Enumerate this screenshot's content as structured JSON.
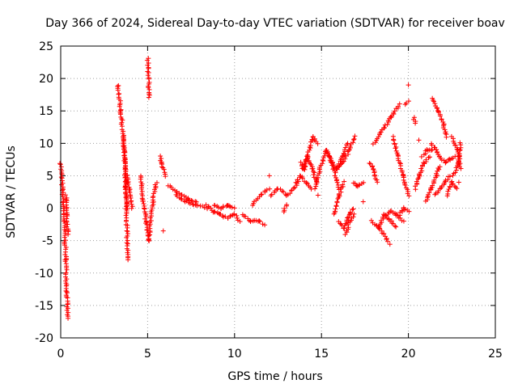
{
  "chart_data": {
    "type": "scatter",
    "title": "Day 366 of 2024, Sidereal Day-to-day VTEC variation (SDTVAR) for receiver boav",
    "xlabel": "GPS time / hours",
    "ylabel": "SDTVAR / TECUs",
    "xlim": [
      0,
      25
    ],
    "ylim": [
      -20,
      25
    ],
    "xticks": [
      0,
      5,
      10,
      15,
      20,
      25
    ],
    "yticks": [
      -20,
      -15,
      -10,
      -5,
      0,
      5,
      10,
      15,
      20,
      25
    ],
    "xtick_labels": [
      "0",
      "5",
      "10",
      "15",
      "20",
      "25"
    ],
    "ytick_labels": [
      "-20",
      "-15",
      "-10",
      "-5",
      "0",
      "5",
      "10",
      "15",
      "20",
      "25"
    ],
    "grid": true,
    "marker": "+",
    "color": "#ff0000",
    "segments": [
      {
        "x": [
          0.0,
          0.1,
          0.2,
          0.3,
          0.35,
          0.4
        ],
        "y": [
          7,
          3,
          -2,
          -8,
          -13,
          -17
        ]
      },
      {
        "x": [
          0.3,
          0.35,
          0.4
        ],
        "y": [
          2,
          -1,
          -4
        ]
      },
      {
        "x": [
          3.3,
          3.45,
          3.6,
          3.7,
          3.8
        ],
        "y": [
          19,
          15,
          11,
          6,
          0
        ]
      },
      {
        "x": [
          3.6,
          3.75,
          3.85
        ],
        "y": [
          11,
          4,
          -8
        ]
      },
      {
        "x": [
          3.8,
          3.95,
          4.1
        ],
        "y": [
          5,
          3,
          0
        ]
      },
      {
        "x": [
          4.6,
          4.75,
          4.9,
          5.05,
          5.3,
          5.5
        ],
        "y": [
          5,
          1,
          -2,
          -5,
          1,
          4
        ]
      },
      {
        "x": [
          5.0,
          5.1
        ],
        "y": [
          23,
          17
        ]
      },
      {
        "x": [
          5.7,
          5.8,
          6.0
        ],
        "y": [
          8,
          7,
          5
        ]
      },
      {
        "x": [
          5.9
        ],
        "y": [
          -3.5
        ]
      },
      {
        "x": [
          6.2,
          6.7,
          7.3,
          7.8
        ],
        "y": [
          3.5,
          2.5,
          1.5,
          1.0
        ]
      },
      {
        "x": [
          6.6,
          7.2,
          7.8,
          8.4
        ],
        "y": [
          2.0,
          1.0,
          0.5,
          0.0
        ]
      },
      {
        "x": [
          8.4,
          8.8,
          9.2,
          9.6,
          10.0,
          10.3
        ],
        "y": [
          0.5,
          -0.5,
          -1.0,
          -1.5,
          -1.0,
          -2.0
        ]
      },
      {
        "x": [
          8.8,
          9.2,
          9.6,
          10.0
        ],
        "y": [
          0.5,
          0.0,
          0.5,
          0.0
        ]
      },
      {
        "x": [
          10.5,
          10.9,
          11.4,
          11.7
        ],
        "y": [
          -1.0,
          -2.0,
          -2.0,
          -2.5
        ]
      },
      {
        "x": [
          11.0,
          11.5,
          12.0
        ],
        "y": [
          0.5,
          2.0,
          3.0
        ]
      },
      {
        "x": [
          12.0
        ],
        "y": [
          5.0
        ]
      },
      {
        "x": [
          12.1,
          12.5,
          13.0,
          13.4,
          13.7
        ],
        "y": [
          2.0,
          3.0,
          2.0,
          3.0,
          4.0
        ]
      },
      {
        "x": [
          12.8,
          13.0
        ],
        "y": [
          -0.5,
          0.5
        ]
      },
      {
        "x": [
          13.5,
          13.8,
          14.1,
          14.4
        ],
        "y": [
          4.0,
          5.0,
          4.0,
          3.0
        ]
      },
      {
        "x": [
          13.8,
          14.0,
          14.2,
          14.5,
          14.8
        ],
        "y": [
          7.0,
          6.0,
          8.0,
          11.0,
          10.0
        ]
      },
      {
        "x": [
          13.9,
          14.2,
          14.5,
          14.7
        ],
        "y": [
          6.0,
          8.0,
          6.0,
          4.0
        ]
      },
      {
        "x": [
          14.6,
          14.9,
          15.3,
          15.7,
          16.0
        ],
        "y": [
          3.0,
          6.0,
          9.0,
          6.0,
          3.0
        ]
      },
      {
        "x": [
          14.8
        ],
        "y": [
          2.0
        ]
      },
      {
        "x": [
          15.3,
          15.6,
          15.9,
          16.2,
          16.5
        ],
        "y": [
          9.0,
          7.0,
          6.0,
          8.0,
          10.0
        ]
      },
      {
        "x": [
          15.7,
          16.0,
          16.3
        ],
        "y": [
          -1.0,
          2.0,
          4.0
        ]
      },
      {
        "x": [
          15.9,
          16.2,
          16.6,
          16.9
        ],
        "y": [
          6.0,
          7.0,
          9.0,
          11.0
        ]
      },
      {
        "x": [
          16.0,
          16.3,
          16.6,
          16.8
        ],
        "y": [
          -2.0,
          -3.0,
          -1.0,
          0.0
        ]
      },
      {
        "x": [
          16.4,
          16.6,
          16.9
        ],
        "y": [
          -4.0,
          -2.0,
          -1.0
        ]
      },
      {
        "x": [
          16.8,
          17.0,
          17.2,
          17.4
        ],
        "y": [
          4.0,
          3.5,
          3.5,
          4.0
        ]
      },
      {
        "x": [
          17.4
        ],
        "y": [
          1.0
        ]
      },
      {
        "x": [
          17.8,
          18.0,
          18.2
        ],
        "y": [
          7.0,
          6.0,
          4.0
        ]
      },
      {
        "x": [
          17.9,
          18.3,
          18.6,
          18.9
        ],
        "y": [
          -2.0,
          -3.0,
          -4.0,
          -5.5
        ]
      },
      {
        "x": [
          18.0,
          18.5,
          19.0,
          19.5
        ],
        "y": [
          10.0,
          12.0,
          14.0,
          16.0
        ]
      },
      {
        "x": [
          18.3,
          18.6,
          19.0,
          19.3
        ],
        "y": [
          -3.0,
          -1.0,
          -2.0,
          -3.0
        ]
      },
      {
        "x": [
          18.7,
          19.0,
          19.3,
          19.7
        ],
        "y": [
          -1.0,
          -0.5,
          -1.0,
          -2.0
        ]
      },
      {
        "x": [
          19.1,
          19.4,
          19.7,
          20.0
        ],
        "y": [
          11.0,
          8.0,
          5.0,
          2.0
        ]
      },
      {
        "x": [
          19.5,
          19.7,
          20.0
        ],
        "y": [
          -1.0,
          0.0,
          -0.5
        ]
      },
      {
        "x": [
          19.8,
          20.0
        ],
        "y": [
          16.0,
          16.5
        ]
      },
      {
        "x": [
          20.0
        ],
        "y": [
          19.0
        ]
      },
      {
        "x": [
          20.3,
          20.4
        ],
        "y": [
          14.0,
          13.0
        ]
      },
      {
        "x": [
          20.4,
          20.6,
          20.9,
          21.2
        ],
        "y": [
          3.0,
          5.0,
          7.0,
          8.0
        ]
      },
      {
        "x": [
          20.6
        ],
        "y": [
          10.5
        ]
      },
      {
        "x": [
          20.8,
          21.1,
          21.4
        ],
        "y": [
          8.0,
          9.0,
          9.0
        ]
      },
      {
        "x": [
          21.0,
          21.3,
          21.6,
          21.8
        ],
        "y": [
          1.0,
          3.0,
          5.0,
          6.5
        ]
      },
      {
        "x": [
          21.3,
          21.6,
          21.8
        ],
        "y": [
          10.0,
          9.0,
          8.0
        ]
      },
      {
        "x": [
          21.4,
          21.7,
          22.0,
          22.2
        ],
        "y": [
          17.0,
          15.0,
          13.0,
          11.0
        ]
      },
      {
        "x": [
          21.5,
          21.8,
          22.1,
          22.4
        ],
        "y": [
          2.0,
          3.0,
          4.0,
          5.0
        ]
      },
      {
        "x": [
          21.8,
          22.1,
          22.4,
          22.7
        ],
        "y": [
          8.0,
          7.0,
          7.5,
          8.0
        ]
      },
      {
        "x": [
          22.2,
          22.5,
          22.8
        ],
        "y": [
          2.0,
          4.0,
          3.0
        ]
      },
      {
        "x": [
          22.5,
          22.8,
          23.0
        ],
        "y": [
          11.0,
          9.0,
          6.0
        ]
      },
      {
        "x": [
          22.6,
          22.9,
          23.0
        ],
        "y": [
          5.0,
          7.0,
          10.0
        ]
      },
      {
        "x": [
          22.9
        ],
        "y": [
          4.0
        ]
      }
    ]
  }
}
